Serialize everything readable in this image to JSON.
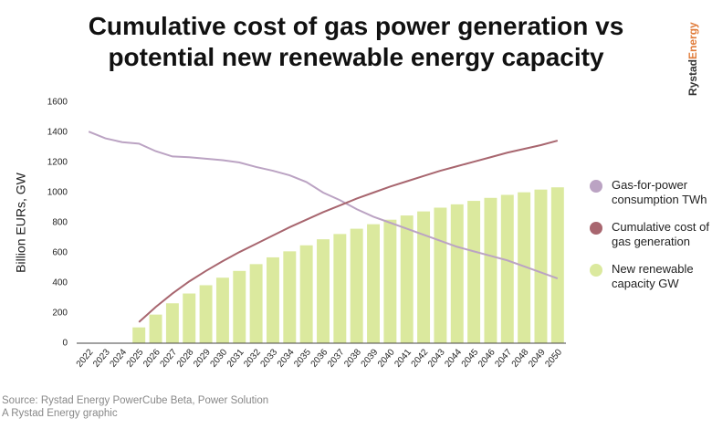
{
  "chart_data": {
    "type": "bar",
    "title": "Cumulative cost of gas power generation vs potential new renewable energy capacity",
    "y_label": "Billion EURs, GW",
    "categories": [
      "2022",
      "2023",
      "2024",
      "2025",
      "2026",
      "2027",
      "2028",
      "2029",
      "2030",
      "2031",
      "2032",
      "2033",
      "2034",
      "2035",
      "2036",
      "2037",
      "2038",
      "2039",
      "2040",
      "2041",
      "2042",
      "2043",
      "2044",
      "2045",
      "2046",
      "2047",
      "2048",
      "2049",
      "2050"
    ],
    "series": [
      {
        "name": "Gas-for-power consumption TWh",
        "type": "line",
        "color": "#bba3c3",
        "values": [
          1405,
          1360,
          1335,
          1325,
          1275,
          1240,
          1235,
          1225,
          1215,
          1200,
          1170,
          1145,
          1115,
          1070,
          1000,
          950,
          890,
          840,
          800,
          760,
          720,
          680,
          640,
          610,
          580,
          550,
          510,
          470,
          430
        ]
      },
      {
        "name": "Cumulative cost of gas generation",
        "type": "line",
        "color": "#a8666f",
        "values": [
          null,
          null,
          null,
          140,
          240,
          330,
          410,
          480,
          545,
          605,
          660,
          715,
          770,
          820,
          870,
          915,
          960,
          1000,
          1040,
          1075,
          1110,
          1145,
          1175,
          1205,
          1235,
          1265,
          1290,
          1315,
          1345
        ]
      },
      {
        "name": "New renewable capacity GW",
        "type": "bar",
        "color": "#dbe99e",
        "values": [
          null,
          null,
          null,
          105,
          190,
          265,
          330,
          385,
          435,
          480,
          525,
          570,
          610,
          650,
          690,
          725,
          760,
          790,
          820,
          848,
          875,
          900,
          922,
          945,
          965,
          985,
          1002,
          1020,
          1035
        ]
      }
    ],
    "ylim": [
      0,
      1600
    ],
    "yticks": [
      0,
      200,
      400,
      600,
      800,
      1000,
      1200,
      1400,
      1600
    ],
    "grid": false,
    "legend": "right",
    "logo": [
      "Rystad",
      "Energy"
    ],
    "source": [
      "Source: Rystad Energy PowerCube Beta, Power Solution",
      "A Rystad Energy graphic"
    ]
  }
}
